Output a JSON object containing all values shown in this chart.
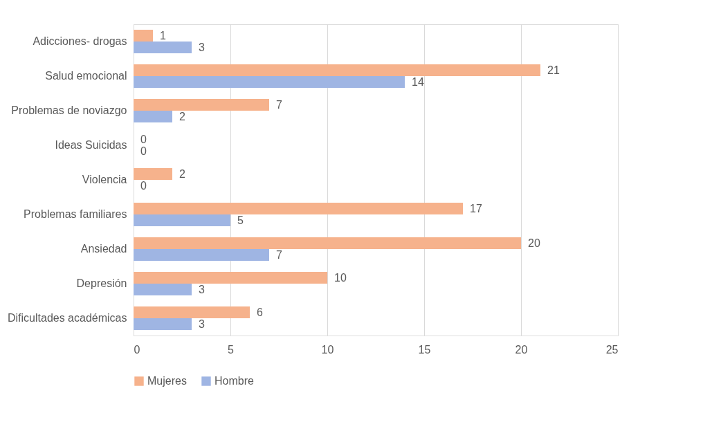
{
  "chart_data": {
    "type": "bar",
    "orientation": "horizontal",
    "categories": [
      "Adicciones- drogas",
      "Salud emocional",
      "Problemas de noviazgo",
      "Ideas Suicidas",
      "Violencia",
      "Problemas familiares",
      "Ansiedad",
      "Depresión",
      "Dificultades académicas"
    ],
    "series": [
      {
        "name": "Mujeres",
        "color": "#f6b28c",
        "values": [
          1,
          21,
          7,
          0,
          2,
          17,
          20,
          10,
          6
        ]
      },
      {
        "name": "Hombre",
        "color": "#9fb5e3",
        "values": [
          3,
          14,
          2,
          0,
          0,
          5,
          7,
          3,
          3
        ]
      }
    ],
    "xlim": [
      0,
      25
    ],
    "xticks": [
      0,
      5,
      10,
      15,
      20,
      25
    ],
    "grid": "x",
    "legend": "bottom",
    "data_labels": true
  }
}
